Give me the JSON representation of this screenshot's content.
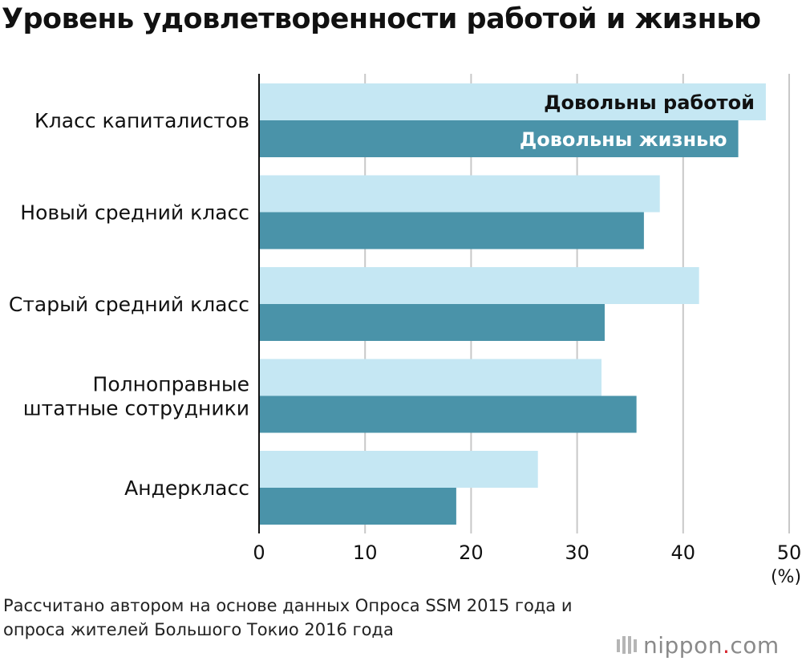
{
  "title": "Уровень удовлетворенности работой и жизнью",
  "colors": {
    "job": "#c5e7f3",
    "life": "#4a93a9",
    "grid": "#c8c8c8",
    "axis": "#111111"
  },
  "chart_data": {
    "type": "bar",
    "orientation": "horizontal",
    "categories": [
      [
        "Класс капиталистов"
      ],
      [
        "Новый средний класс"
      ],
      [
        "Старый средний класс"
      ],
      [
        "Полноправные",
        "штатные сотрудники"
      ],
      [
        "Андеркласс"
      ]
    ],
    "series": [
      {
        "name": "Довольны работой",
        "values": [
          47.8,
          37.8,
          41.5,
          32.3,
          26.3
        ]
      },
      {
        "name": "Довольны жизнью",
        "values": [
          45.2,
          36.3,
          32.6,
          35.6,
          18.6
        ]
      }
    ],
    "xticks": [
      "0",
      "10",
      "20",
      "30",
      "40",
      "50"
    ],
    "xlim": [
      0,
      50
    ],
    "unit": "(%)",
    "legend_placement": "inside top bars"
  },
  "source": [
    "Рассчитано автором на основе данных Опроса SSM 2015 года и",
    "опроса жителей Большого Токио 2016 года"
  ],
  "logo": {
    "name": "nippon",
    "dot": ".",
    "tld": "com"
  }
}
